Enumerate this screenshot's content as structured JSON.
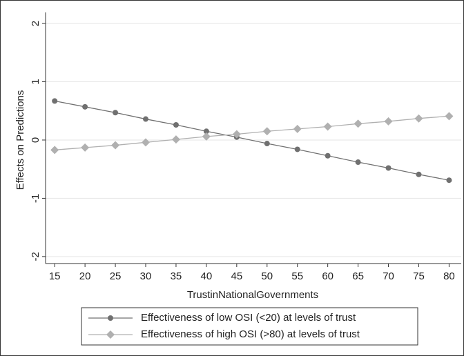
{
  "chart_data": {
    "type": "line",
    "x_label": "TrustinNationalGovernments",
    "y_label": "Effects on Predictions",
    "x": [
      15,
      20,
      25,
      30,
      35,
      40,
      45,
      50,
      55,
      60,
      65,
      70,
      75,
      80
    ],
    "series": [
      {
        "name": "Effectiveness of low OSI (<20) at levels of trust",
        "color": "#707070",
        "marker": "circle",
        "values": [
          0.67,
          0.57,
          0.47,
          0.36,
          0.26,
          0.15,
          0.05,
          -0.06,
          -0.16,
          -0.27,
          -0.38,
          -0.48,
          -0.59,
          -0.69
        ]
      },
      {
        "name": "Effectiveness of high OSI (>80) at levels of trust",
        "color": "#b0b0b0",
        "marker": "diamond",
        "values": [
          -0.17,
          -0.13,
          -0.09,
          -0.04,
          0.01,
          0.06,
          0.1,
          0.15,
          0.19,
          0.23,
          0.28,
          0.32,
          0.37,
          0.41
        ]
      }
    ],
    "xlim": [
      13.5,
      82
    ],
    "ylim": [
      -2.12,
      2.19
    ],
    "xticks": [
      15,
      20,
      25,
      30,
      35,
      40,
      45,
      50,
      55,
      60,
      65,
      70,
      75,
      80
    ],
    "yticks": [
      -2,
      -1,
      0,
      1,
      2
    ],
    "grid": true,
    "legend_position": "bottom"
  }
}
